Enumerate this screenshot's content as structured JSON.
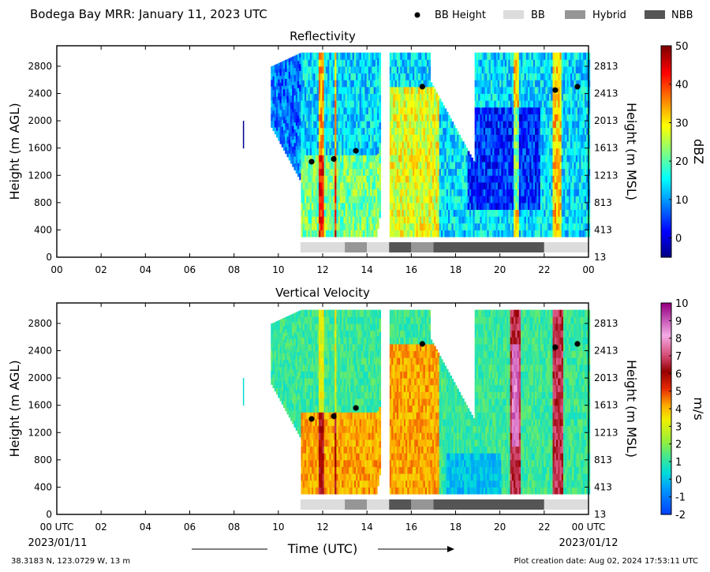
{
  "header": {
    "title": "Bodega Bay MRR:  January 11, 2023 UTC",
    "legend": [
      {
        "label": "BB Height",
        "kind": "dot",
        "color": "#000000"
      },
      {
        "label": "BB",
        "kind": "swatch",
        "color": "#dcdcdc"
      },
      {
        "label": "Hybrid",
        "kind": "swatch",
        "color": "#969696"
      },
      {
        "label": "NBB",
        "kind": "swatch",
        "color": "#555555"
      }
    ]
  },
  "chart_data": [
    {
      "type": "heatmap",
      "title": "Reflectivity",
      "ylabel": "Height (m AGL)",
      "ylabel_right": "Height (m MSL)",
      "colorbar_label": "dBZ",
      "colorbar_ticks": [
        "50",
        "40",
        "30",
        "20",
        "10",
        "0"
      ],
      "clim": [
        -5,
        50
      ],
      "y_ticks_left": [
        "2800",
        "2400",
        "2000",
        "1600",
        "1200",
        "800",
        "400",
        "0"
      ],
      "y_ticks_right": [
        "2813",
        "2413",
        "2013",
        "1613",
        "1213",
        "813",
        "413",
        "13"
      ],
      "x_ticks": [
        "00",
        "02",
        "04",
        "06",
        "08",
        "10",
        "12",
        "14",
        "16",
        "18",
        "20",
        "22",
        "00"
      ],
      "xlim": [
        0,
        24
      ],
      "ylim": [
        0,
        3100
      ],
      "bb_height": [
        {
          "x": 11.5,
          "y": 1400
        },
        {
          "x": 12.5,
          "y": 1440
        },
        {
          "x": 13.5,
          "y": 1560
        },
        {
          "x": 16.5,
          "y": 2500
        },
        {
          "x": 22.5,
          "y": 2450
        },
        {
          "x": 23.5,
          "y": 2500
        }
      ],
      "bb_type": [
        {
          "start": 11,
          "end": 13,
          "type": "BB"
        },
        {
          "start": 13,
          "end": 14,
          "type": "Hybrid"
        },
        {
          "start": 14,
          "end": 15,
          "type": "BB"
        },
        {
          "start": 15,
          "end": 16,
          "type": "NBB"
        },
        {
          "start": 16,
          "end": 17,
          "type": "Hybrid"
        },
        {
          "start": 17,
          "end": 22,
          "type": "NBB"
        },
        {
          "start": 22,
          "end": 24,
          "type": "BB"
        }
      ]
    },
    {
      "type": "heatmap",
      "title": "Vertical Velocity",
      "ylabel": "Height (m AGL)",
      "ylabel_right": "Height (m MSL)",
      "colorbar_label": "m/s",
      "colorbar_ticks": [
        "10",
        "9",
        "8",
        "7",
        "6",
        "5",
        "4",
        "3",
        "2",
        "1",
        "0",
        "-1",
        "-2"
      ],
      "clim": [
        -2,
        10
      ],
      "y_ticks_left": [
        "2800",
        "2400",
        "2000",
        "1600",
        "1200",
        "800",
        "400",
        "0"
      ],
      "y_ticks_right": [
        "2813",
        "2413",
        "2013",
        "1613",
        "1213",
        "813",
        "413",
        "13"
      ],
      "x_ticks": [
        "00 UTC",
        "02",
        "04",
        "06",
        "08",
        "10",
        "12",
        "14",
        "16",
        "18",
        "20",
        "22",
        "00 UTC"
      ],
      "xlim": [
        0,
        24
      ],
      "ylim": [
        0,
        3100
      ],
      "xlabel": "Time (UTC)",
      "date_start": "2023/01/11",
      "date_end": "2023/01/12",
      "bb_height": [
        {
          "x": 11.5,
          "y": 1400
        },
        {
          "x": 12.5,
          "y": 1440
        },
        {
          "x": 13.5,
          "y": 1560
        },
        {
          "x": 16.5,
          "y": 2500
        },
        {
          "x": 22.5,
          "y": 2450
        },
        {
          "x": 23.5,
          "y": 2500
        }
      ],
      "bb_type": [
        {
          "start": 11,
          "end": 13,
          "type": "BB"
        },
        {
          "start": 13,
          "end": 14,
          "type": "Hybrid"
        },
        {
          "start": 14,
          "end": 15,
          "type": "BB"
        },
        {
          "start": 15,
          "end": 16,
          "type": "NBB"
        },
        {
          "start": 16,
          "end": 17,
          "type": "Hybrid"
        },
        {
          "start": 17,
          "end": 22,
          "type": "NBB"
        },
        {
          "start": 22,
          "end": 24,
          "type": "BB"
        }
      ]
    }
  ],
  "footer": {
    "location": "38.3183 N, 123.0729 W, 13 m",
    "created": "Plot creation date: Aug 02, 2024 17:53:11 UTC"
  }
}
